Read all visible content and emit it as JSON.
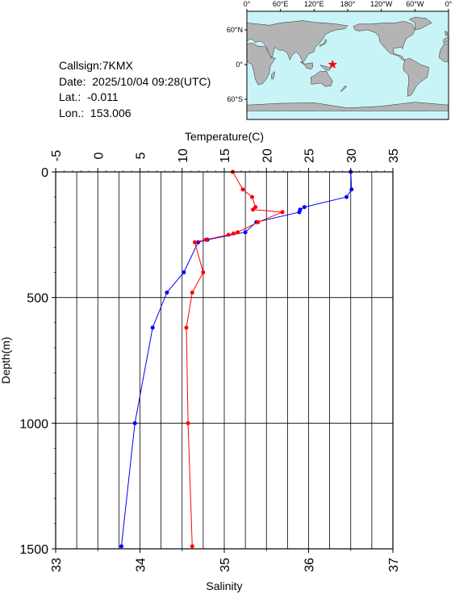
{
  "info": {
    "callsign": "Callsign:7KMX",
    "date": "Date:  2025/10/04 09:28(UTC)",
    "lat": "Lat.:  -0.011",
    "lon": "Lon.:  153.006"
  },
  "map": {
    "top_labels": [
      "0°",
      "60°E",
      "120°E",
      "180°",
      "120°W",
      "60°W",
      "0°"
    ],
    "left_labels": [
      "60°N",
      "0°",
      "60°S"
    ],
    "marker_lon": 153.006,
    "marker_lat": -0.011,
    "ocean_color": "#c8f4f8",
    "land_color": "#b4b4b4",
    "marker_color": "#ff0000",
    "marker_icon": "star-icon"
  },
  "chart_data": {
    "type": "line",
    "top_axis_label": "Temperature(C)",
    "bottom_axis_label": "Salinity",
    "left_axis_label": "Depth(m)",
    "temperature_range": [
      -5,
      35
    ],
    "temperature_ticks": [
      "-5",
      "0",
      "5",
      "10",
      "15",
      "20",
      "25",
      "30",
      "35"
    ],
    "salinity_range": [
      33,
      37
    ],
    "salinity_ticks": [
      "33",
      "34",
      "35",
      "36",
      "37"
    ],
    "depth_range": [
      0,
      1500
    ],
    "depth_ticks": [
      "0",
      "500",
      "1000",
      "1500"
    ],
    "grid": true,
    "series": [
      {
        "quantity": "temperature",
        "color": "#0000ff",
        "points": [
          {
            "depth": 0,
            "value": 30.0
          },
          {
            "depth": 70,
            "value": 30.1
          },
          {
            "depth": 100,
            "value": 29.5
          },
          {
            "depth": 140,
            "value": 24.5
          },
          {
            "depth": 150,
            "value": 24.0
          },
          {
            "depth": 160,
            "value": 23.9
          },
          {
            "depth": 200,
            "value": 18.8
          },
          {
            "depth": 240,
            "value": 17.5
          },
          {
            "depth": 270,
            "value": 13.0
          },
          {
            "depth": 280,
            "value": 11.9
          },
          {
            "depth": 400,
            "value": 10.2
          },
          {
            "depth": 480,
            "value": 8.2
          },
          {
            "depth": 620,
            "value": 6.5
          },
          {
            "depth": 1000,
            "value": 4.4
          },
          {
            "depth": 1490,
            "value": 2.8
          }
        ]
      },
      {
        "quantity": "salinity",
        "color": "#ff0000",
        "points": [
          {
            "depth": 0,
            "value": 35.1
          },
          {
            "depth": 70,
            "value": 35.22
          },
          {
            "depth": 100,
            "value": 35.33
          },
          {
            "depth": 140,
            "value": 35.37
          },
          {
            "depth": 150,
            "value": 35.34
          },
          {
            "depth": 160,
            "value": 35.69
          },
          {
            "depth": 200,
            "value": 35.4
          },
          {
            "depth": 240,
            "value": 35.16
          },
          {
            "depth": 245,
            "value": 35.11
          },
          {
            "depth": 250,
            "value": 35.05
          },
          {
            "depth": 270,
            "value": 34.78
          },
          {
            "depth": 280,
            "value": 34.65
          },
          {
            "depth": 400,
            "value": 34.75
          },
          {
            "depth": 480,
            "value": 34.62
          },
          {
            "depth": 620,
            "value": 34.55
          },
          {
            "depth": 1000,
            "value": 34.57
          },
          {
            "depth": 1490,
            "value": 34.62
          }
        ]
      }
    ]
  }
}
